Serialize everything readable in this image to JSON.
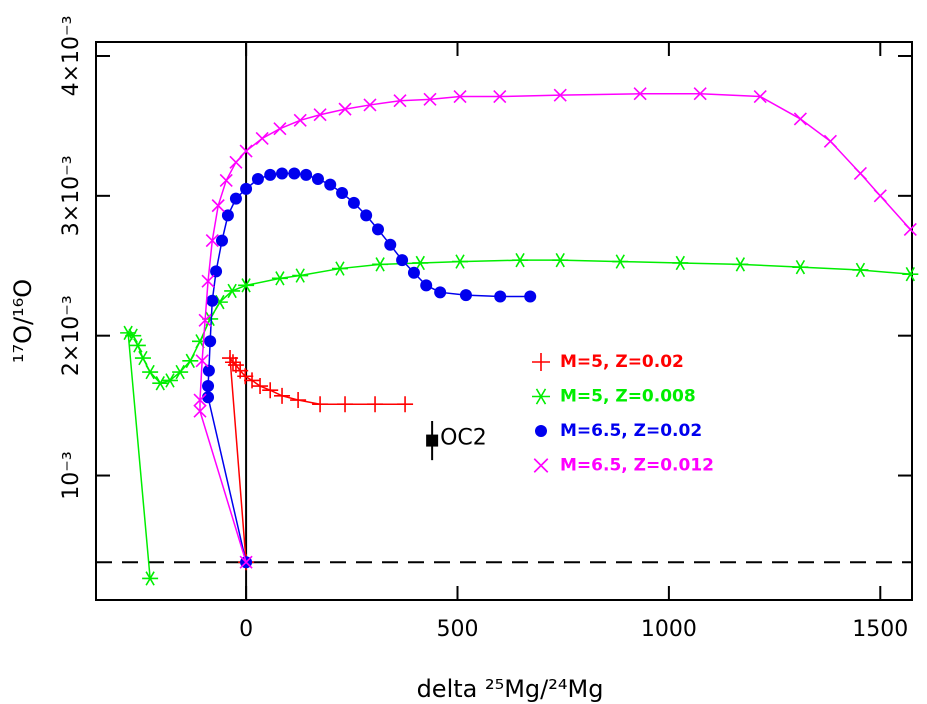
{
  "chart_data": {
    "type": "line",
    "x_label": "delta ²⁵Mg/²⁴Mg",
    "y_label": "¹⁷O/¹⁶O",
    "xlim": [
      -355,
      1575
    ],
    "ylim": [
      0.00011,
      0.0041
    ],
    "xticks": [
      0,
      500,
      1000,
      1500
    ],
    "yticks": [
      {
        "value": 0.001,
        "label": "10⁻³"
      },
      {
        "value": 0.002,
        "label": "2×10⁻³"
      },
      {
        "value": 0.003,
        "label": "3×10⁻³"
      },
      {
        "value": 0.004,
        "label": "4×10⁻³"
      }
    ],
    "hline": 0.00038,
    "series": [
      {
        "name": "M=5, Z=0.02",
        "color": "#ff0000",
        "marker": "plus",
        "x": [
          0,
          -38,
          -31,
          -24,
          -14,
          -2,
          14,
          33,
          57,
          85,
          123,
          175,
          234,
          305,
          376
        ],
        "values": [
          0.00038,
          0.00184,
          0.00181,
          0.00179,
          0.00175,
          0.00171,
          0.00168,
          0.00164,
          0.00161,
          0.00157,
          0.00154,
          0.00151,
          0.00151,
          0.00151,
          0.00151
        ]
      },
      {
        "name": "M=5, Z=0.008",
        "color": "#00ee00",
        "marker": "star",
        "x": [
          -227,
          -279,
          -267,
          -256,
          -244,
          -227,
          -203,
          -180,
          -156,
          -132,
          -109,
          -85,
          -62,
          -33,
          0,
          80,
          128,
          222,
          317,
          412,
          506,
          648,
          743,
          885,
          1027,
          1169,
          1311,
          1453,
          1571
        ],
        "values": [
          0.000264,
          0.00202,
          0.002,
          0.00193,
          0.00184,
          0.00174,
          0.00166,
          0.00168,
          0.00174,
          0.00182,
          0.00196,
          0.00212,
          0.00224,
          0.00232,
          0.00236,
          0.00241,
          0.00243,
          0.00248,
          0.00251,
          0.00252,
          0.00253,
          0.00254,
          0.00254,
          0.00253,
          0.00252,
          0.00251,
          0.00249,
          0.00247,
          0.00244
        ]
      },
      {
        "name": "M=6.5, Z=0.02",
        "color": "#0000ee",
        "marker": "circle",
        "x": [
          0,
          -90,
          -90,
          -88,
          -85,
          -80,
          -71,
          -57,
          -43,
          -24,
          0,
          28,
          57,
          85,
          114,
          142,
          170,
          199,
          227,
          255,
          284,
          312,
          341,
          369,
          397,
          426,
          459,
          520,
          601,
          672
        ],
        "values": [
          0.00038,
          0.00156,
          0.00164,
          0.00175,
          0.00196,
          0.00225,
          0.00246,
          0.00268,
          0.00286,
          0.00298,
          0.00305,
          0.00312,
          0.00315,
          0.00316,
          0.00316,
          0.00315,
          0.00312,
          0.00308,
          0.00302,
          0.00295,
          0.00286,
          0.00276,
          0.00265,
          0.00254,
          0.00245,
          0.00236,
          0.00231,
          0.00229,
          0.00228,
          0.00228
        ]
      },
      {
        "name": "M=6.5, Z=0.012",
        "color": "#ff00ff",
        "marker": "cross",
        "x": [
          0,
          -109,
          -109,
          -104,
          -97,
          -90,
          -80,
          -66,
          -47,
          -24,
          0,
          38,
          80,
          128,
          175,
          234,
          293,
          364,
          435,
          506,
          600,
          743,
          932,
          1074,
          1216,
          1311,
          1382,
          1453,
          1500,
          1571
        ],
        "values": [
          0.00038,
          0.00146,
          0.00154,
          0.00182,
          0.00211,
          0.00239,
          0.00268,
          0.00293,
          0.00311,
          0.00324,
          0.00332,
          0.00341,
          0.00348,
          0.00354,
          0.00358,
          0.00362,
          0.00365,
          0.00368,
          0.00369,
          0.00371,
          0.00371,
          0.00372,
          0.00373,
          0.00373,
          0.00371,
          0.00355,
          0.00339,
          0.00316,
          0.003,
          0.00276
        ]
      }
    ],
    "point": {
      "label": "OC2",
      "x": 440,
      "y": 0.00125,
      "error": 0.00014
    }
  }
}
